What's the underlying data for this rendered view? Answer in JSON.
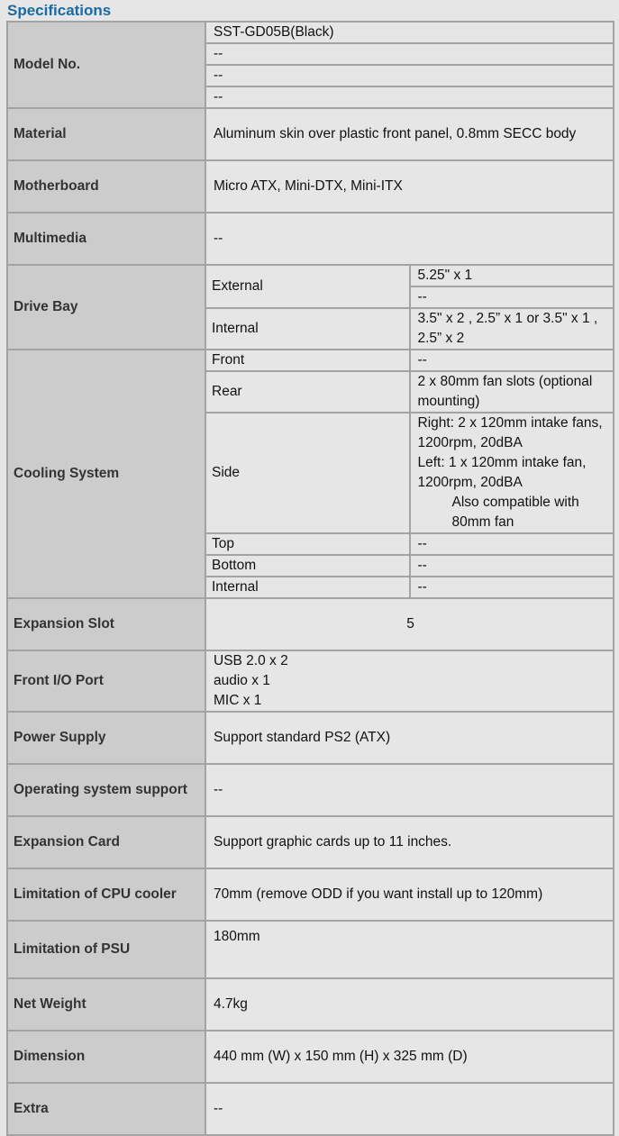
{
  "title": "Specifications",
  "specs": [
    {
      "label": "Model No.",
      "values": [
        "SST-GD05B(Black)",
        "--",
        "--",
        "--"
      ]
    },
    {
      "label": "Material",
      "values": [
        "Aluminum skin over plastic front panel, 0.8mm SECC body"
      ]
    },
    {
      "label": "Motherboard",
      "values": [
        "Micro ATX, Mini-DTX, Mini-ITX"
      ]
    },
    {
      "label": "Multimedia",
      "values": [
        "--"
      ]
    },
    {
      "label": "Drive Bay",
      "sub": [
        {
          "label": "External",
          "values": [
            "5.25\" x 1",
            "--"
          ]
        },
        {
          "label": "Internal",
          "values": [
            "3.5\" x 2 , 2.5” x 1 or 3.5\" x 1 , 2.5” x 2"
          ]
        }
      ]
    },
    {
      "label": "Cooling System",
      "sub": [
        {
          "label": "Front",
          "values": [
            "--"
          ]
        },
        {
          "label": "Rear",
          "values": [
            "2 x 80mm fan slots (optional mounting)"
          ]
        },
        {
          "label": "Side",
          "lines": [
            "Right: 2 x 120mm intake fans, 1200rpm, 20dBA",
            "Left: 1 x 120mm intake fan, 1200rpm, 20dBA",
            "Also compatible with 80mm fan"
          ]
        },
        {
          "label": "Top",
          "values": [
            "--"
          ]
        },
        {
          "label": "Bottom",
          "values": [
            "--"
          ]
        },
        {
          "label": "Internal",
          "values": [
            "--"
          ]
        }
      ]
    },
    {
      "label": "Expansion Slot",
      "values": [
        "5"
      ],
      "align": "center"
    },
    {
      "label": "Front I/O Port",
      "lines": [
        "USB 2.0 x 2",
        "audio x 1",
        "MIC x 1"
      ]
    },
    {
      "label": "Power Supply",
      "values": [
        "Support standard PS2 (ATX)"
      ]
    },
    {
      "label": "Operating system support",
      "values": [
        "--"
      ]
    },
    {
      "label": "Expansion Card",
      "values": [
        "Support graphic cards up to 11 inches."
      ]
    },
    {
      "label": "Limitation of CPU cooler",
      "values": [
        "70mm (remove ODD if you want install up to 120mm)"
      ]
    },
    {
      "label": "Limitation of PSU",
      "values": [
        "180mm"
      ],
      "align": "top"
    },
    {
      "label": "Net Weight",
      "values": [
        "4.7kg"
      ]
    },
    {
      "label": "Dimension",
      "values": [
        "440 mm (W) x 150 mm (H) x 325 mm (D)"
      ]
    },
    {
      "label": "Extra",
      "values": [
        "--"
      ]
    }
  ]
}
